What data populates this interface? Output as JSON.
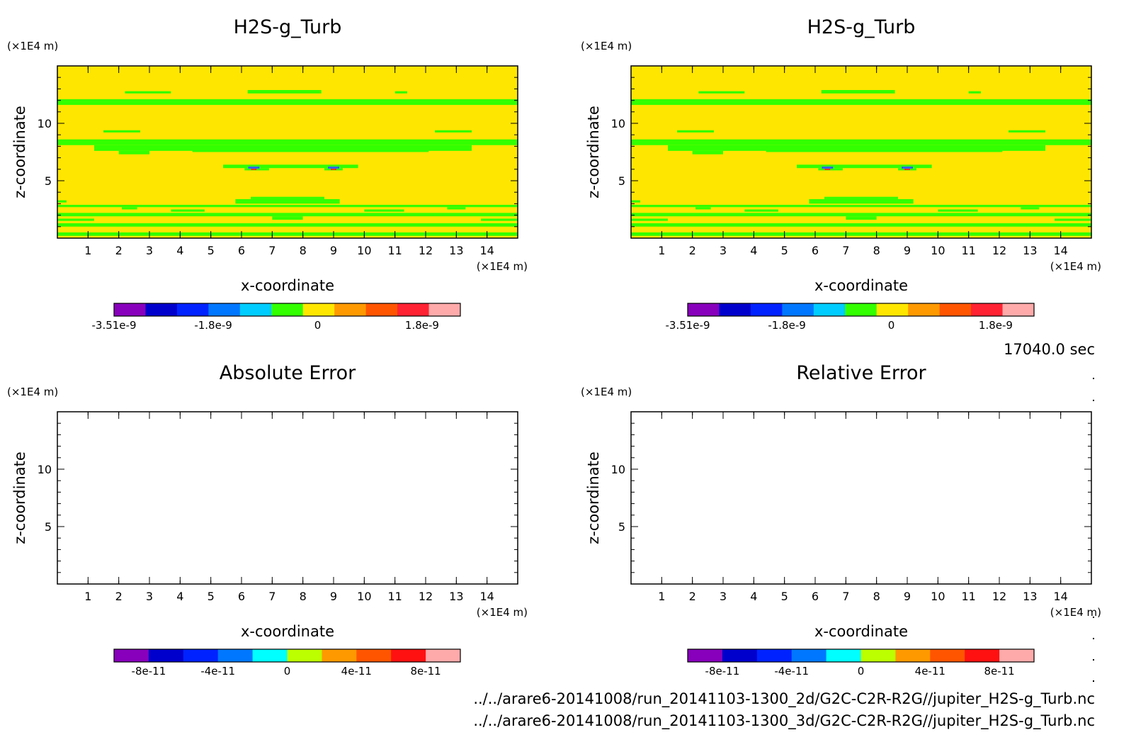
{
  "time_label": "17040.0 sec",
  "file_paths": [
    "../../arare6-20141008/run_20141103-1300_2d/G2C-C2R-R2G//jupiter_H2S-g_Turb.nc",
    "../../arare6-20141008/run_20141103-1300_3d/G2C-C2R-R2G//jupiter_H2S-g_Turb.nc"
  ],
  "colors": {
    "field_background": "#ffe600",
    "field_band": "#33ff00",
    "anomaly_blue": "#3366ff",
    "anomaly_red": "#ff3300"
  },
  "chart_data": [
    {
      "type": "heatmap",
      "title": "H2S-g_Turb",
      "xlabel": "x-coordinate",
      "ylabel": "z-coordinate",
      "x_unit": "(×1E4 m)",
      "y_unit": "(×1E4 m)",
      "xlim": [
        0,
        15
      ],
      "ylim": [
        0,
        15
      ],
      "x_ticks": [
        "1",
        "2",
        "3",
        "4",
        "5",
        "6",
        "7",
        "8",
        "9",
        "10",
        "11",
        "12",
        "13",
        "14"
      ],
      "y_ticks": [
        "5",
        "10"
      ],
      "filled": true,
      "colorbar": {
        "colors": [
          "#8800bb",
          "#0000cc",
          "#0022ff",
          "#0077ff",
          "#00ccff",
          "#33ff00",
          "#ffe600",
          "#ff9900",
          "#ff5500",
          "#ff2233",
          "#ffaaaa"
        ],
        "tick_labels": [
          "-3.51e-9",
          "-1.8e-9",
          "0",
          "1.8e-9"
        ],
        "tick_values": [
          -3.51e-09,
          -1.8e-09,
          0,
          1.8e-09
        ],
        "range": [
          -3.51e-09,
          2.46e-09
        ]
      }
    },
    {
      "type": "heatmap",
      "title": "H2S-g_Turb",
      "xlabel": "x-coordinate",
      "ylabel": "z-coordinate",
      "x_unit": "(×1E4 m)",
      "y_unit": "(×1E4 m)",
      "xlim": [
        0,
        15
      ],
      "ylim": [
        0,
        15
      ],
      "x_ticks": [
        "1",
        "2",
        "3",
        "4",
        "5",
        "6",
        "7",
        "8",
        "9",
        "10",
        "11",
        "12",
        "13",
        "14"
      ],
      "y_ticks": [
        "5",
        "10"
      ],
      "filled": true,
      "colorbar": {
        "colors": [
          "#8800bb",
          "#0000cc",
          "#0022ff",
          "#0077ff",
          "#00ccff",
          "#33ff00",
          "#ffe600",
          "#ff9900",
          "#ff5500",
          "#ff2233",
          "#ffaaaa"
        ],
        "tick_labels": [
          "-3.51e-9",
          "-1.8e-9",
          "0",
          "1.8e-9"
        ],
        "tick_values": [
          -3.51e-09,
          -1.8e-09,
          0,
          1.8e-09
        ],
        "range": [
          -3.51e-09,
          2.46e-09
        ]
      }
    },
    {
      "type": "heatmap",
      "title": "Absolute Error",
      "xlabel": "x-coordinate",
      "ylabel": "z-coordinate",
      "x_unit": "(×1E4 m)",
      "y_unit": "(×1E4 m)",
      "xlim": [
        0,
        15
      ],
      "ylim": [
        0,
        15
      ],
      "x_ticks": [
        "1",
        "2",
        "3",
        "4",
        "5",
        "6",
        "7",
        "8",
        "9",
        "10",
        "11",
        "12",
        "13",
        "14"
      ],
      "y_ticks": [
        "5",
        "10"
      ],
      "filled": false,
      "colorbar": {
        "colors": [
          "#8800bb",
          "#0000cc",
          "#0022ff",
          "#0077ff",
          "#00ffff",
          "#bbff00",
          "#ff9900",
          "#ff5500",
          "#ff1111",
          "#ffaaaa"
        ],
        "tick_labels": [
          "-8e-11",
          "-4e-11",
          "0",
          "4e-11",
          "8e-11"
        ],
        "tick_values": [
          -8e-11,
          -4e-11,
          0,
          4e-11,
          8e-11
        ],
        "range": [
          -1e-10,
          1e-10
        ]
      }
    },
    {
      "type": "heatmap",
      "title": "Relative Error",
      "xlabel": "x-coordinate",
      "ylabel": "z-coordinate",
      "x_unit": "(×1E4 m)",
      "y_unit": "(×1E4 m)",
      "xlim": [
        0,
        15
      ],
      "ylim": [
        0,
        15
      ],
      "x_ticks": [
        "1",
        "2",
        "3",
        "4",
        "5",
        "6",
        "7",
        "8",
        "9",
        "10",
        "11",
        "12",
        "13",
        "14"
      ],
      "y_ticks": [
        "5",
        "10"
      ],
      "filled": false,
      "colorbar": {
        "colors": [
          "#8800bb",
          "#0000cc",
          "#0022ff",
          "#0077ff",
          "#00ffff",
          "#bbff00",
          "#ff9900",
          "#ff5500",
          "#ff1111",
          "#ffaaaa"
        ],
        "tick_labels": [
          "-8e-11",
          "-4e-11",
          "0",
          "4e-11",
          "8e-11"
        ],
        "tick_values": [
          -8e-11,
          -4e-11,
          0,
          4e-11,
          8e-11
        ],
        "range": [
          -1e-10,
          1e-10
        ]
      }
    }
  ]
}
